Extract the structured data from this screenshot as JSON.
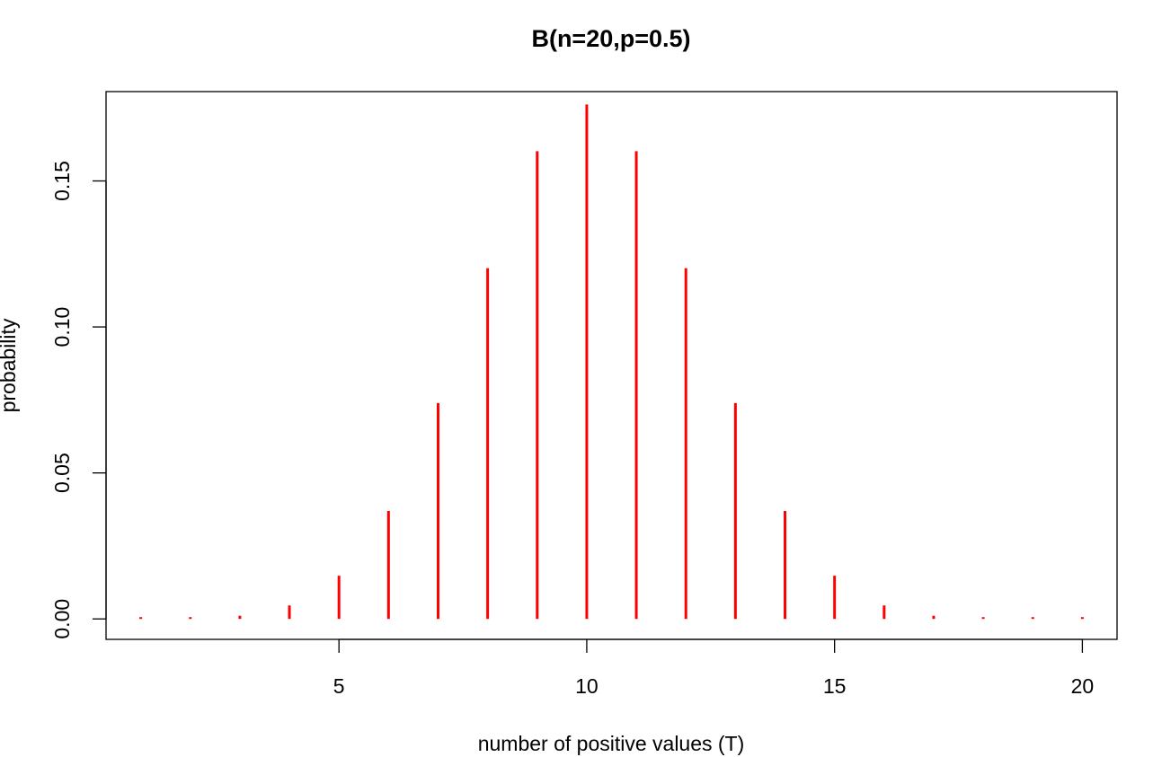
{
  "chart_data": {
    "type": "bar",
    "title": "B(n=20,p=0.5)",
    "xlabel": "number of positive values (T)",
    "ylabel": "probability",
    "x": [
      1,
      2,
      3,
      4,
      5,
      6,
      7,
      8,
      9,
      10,
      11,
      12,
      13,
      14,
      15,
      16,
      17,
      18,
      19,
      20
    ],
    "values": [
      1.91e-05,
      0.000181,
      0.001087,
      0.004621,
      0.014786,
      0.036964,
      0.073929,
      0.120134,
      0.160179,
      0.176197,
      0.160179,
      0.120134,
      0.073929,
      0.036964,
      0.014786,
      0.004621,
      0.001087,
      0.000181,
      1.91e-05,
      9.5e-07
    ],
    "xlim": [
      0.3,
      20.7
    ],
    "ylim": [
      -0.007,
      0.1806
    ],
    "x_ticks": [
      5,
      10,
      15,
      20
    ],
    "x_tick_labels": [
      "5",
      "10",
      "15",
      "20"
    ],
    "y_ticks": [
      0.0,
      0.05,
      0.1,
      0.15
    ],
    "y_tick_labels": [
      "0.00",
      "0.05",
      "0.10",
      "0.15"
    ],
    "grid": false,
    "bar_color": "#ff0000"
  }
}
